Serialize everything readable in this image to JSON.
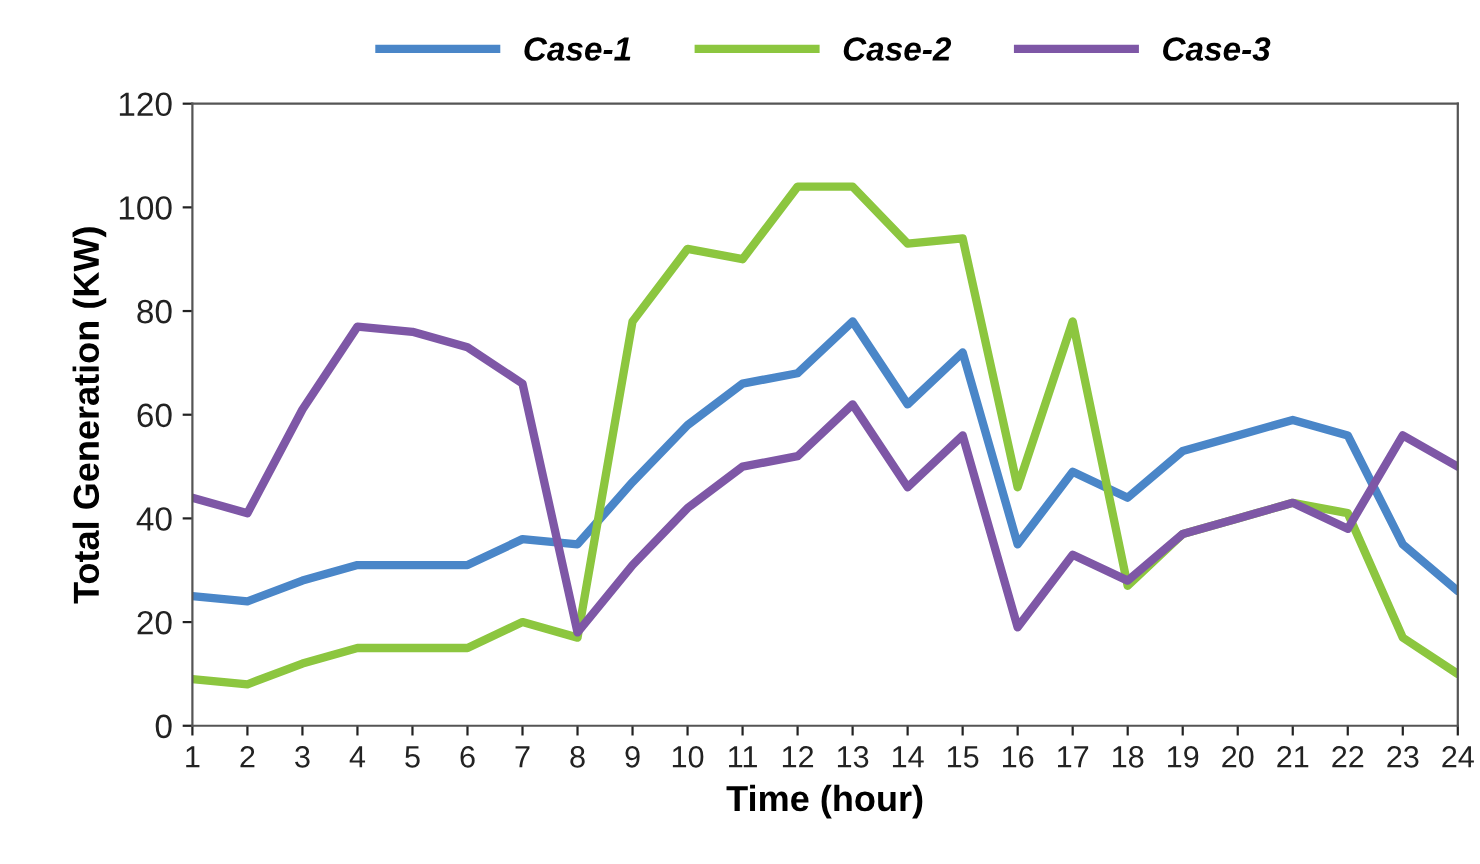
{
  "chart_data": {
    "type": "line",
    "xlabel": "Time (hour)",
    "ylabel": "Total Generation (KW)",
    "x": [
      1,
      2,
      3,
      4,
      5,
      6,
      7,
      8,
      9,
      10,
      11,
      12,
      13,
      14,
      15,
      16,
      17,
      18,
      19,
      20,
      21,
      22,
      23,
      24
    ],
    "series": [
      {
        "name": "Case-1",
        "color": "#4a86c8",
        "values": [
          25,
          24,
          28,
          31,
          31,
          31,
          36,
          35,
          47,
          58,
          66,
          68,
          78,
          62,
          72,
          35,
          49,
          44,
          53,
          56,
          59,
          56,
          35,
          26
        ]
      },
      {
        "name": "Case-2",
        "color": "#8cc63f",
        "values": [
          9,
          8,
          12,
          15,
          15,
          15,
          20,
          17,
          78,
          92,
          90,
          104,
          104,
          93,
          94,
          46,
          78,
          27,
          37,
          40,
          43,
          41,
          17,
          10
        ]
      },
      {
        "name": "Case-3",
        "color": "#7e57a6",
        "values": [
          44,
          41,
          61,
          77,
          76,
          73,
          66,
          18,
          31,
          42,
          50,
          52,
          62,
          46,
          56,
          19,
          33,
          28,
          37,
          40,
          43,
          38,
          56,
          50
        ]
      }
    ],
    "xlim": [
      1,
      24
    ],
    "xticks": [
      1,
      2,
      3,
      4,
      5,
      6,
      7,
      8,
      9,
      10,
      11,
      12,
      13,
      14,
      15,
      16,
      17,
      18,
      19,
      20,
      21,
      22,
      23,
      24
    ],
    "ylim": [
      0,
      120
    ],
    "yticks": [
      0,
      20,
      40,
      60,
      80,
      100,
      120
    ],
    "grid": false,
    "legend": "top",
    "marker": "none",
    "line_style": "solid"
  }
}
